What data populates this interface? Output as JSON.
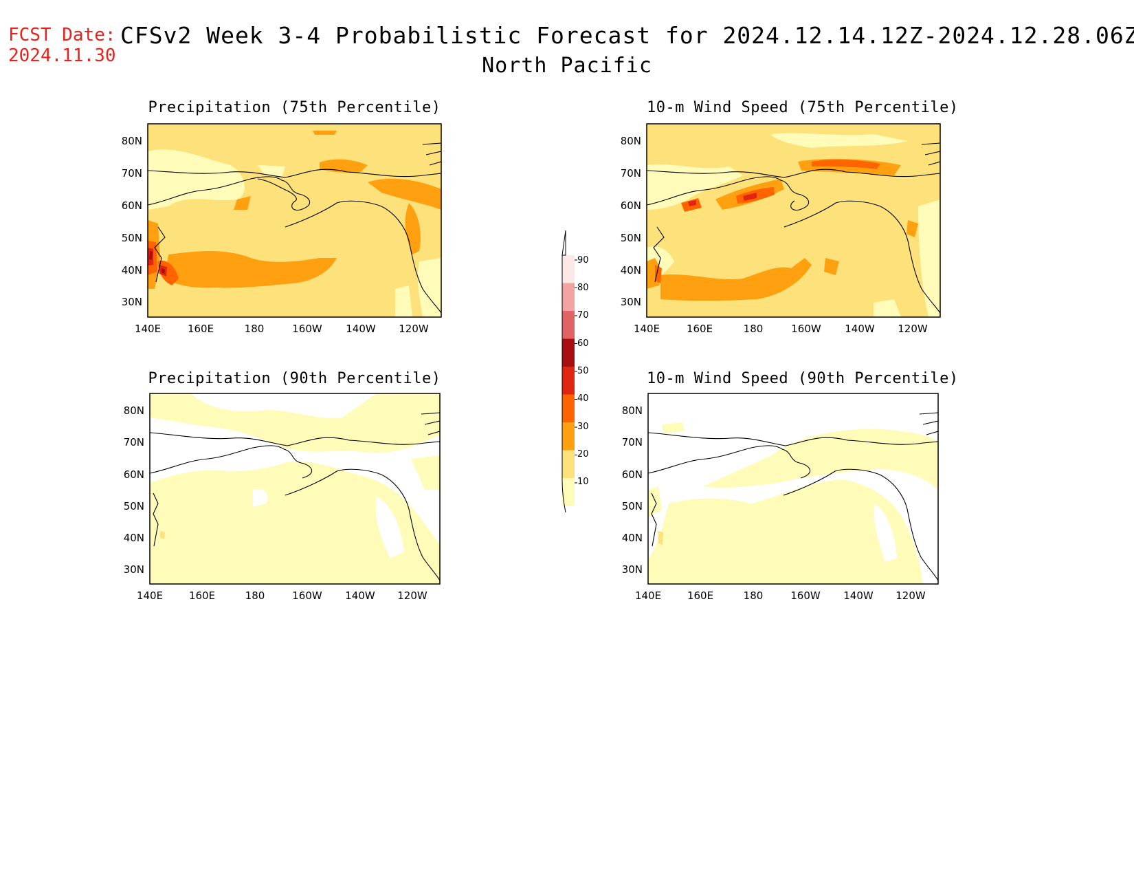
{
  "header": {
    "fcst_label": "FCST Date:",
    "fcst_date": "2024.11.30",
    "title": "CFSv2 Week 3-4 Probabilistic Forecast for 2024.12.14.12Z-2024.12.28.06Z",
    "region": "North Pacific"
  },
  "axes": {
    "lat_ticks": [
      "80N",
      "70N",
      "60N",
      "50N",
      "40N",
      "30N"
    ],
    "lon_ticks": [
      "140E",
      "160E",
      "180",
      "160W",
      "140W",
      "120W"
    ]
  },
  "panels": [
    {
      "id": "precip75",
      "title": "Precipitation (75th Percentile)"
    },
    {
      "id": "wind75",
      "title": "10-m Wind Speed (75th Percentile)"
    },
    {
      "id": "precip90",
      "title": "Precipitation (90th Percentile)"
    },
    {
      "id": "wind90",
      "title": "10-m Wind Speed (90th Percentile)"
    }
  ],
  "colorbar": {
    "labels": [
      "90",
      "80",
      "70",
      "60",
      "50",
      "40",
      "30",
      "20",
      "10"
    ],
    "colors": [
      "#fde8e8",
      "#f4a3a3",
      "#e06464",
      "#a50f0f",
      "#e02510",
      "#ff6400",
      "#ffa010",
      "#fde17a",
      "#fffbb8"
    ]
  },
  "colors": {
    "shade_10": "#fffbb8",
    "shade_20": "#fde17a",
    "shade_30": "#ffa010",
    "shade_40": "#ff6400",
    "shade_50": "#e02510",
    "shade_60": "#a50f0f",
    "fcst_text": "#e8221c"
  }
}
